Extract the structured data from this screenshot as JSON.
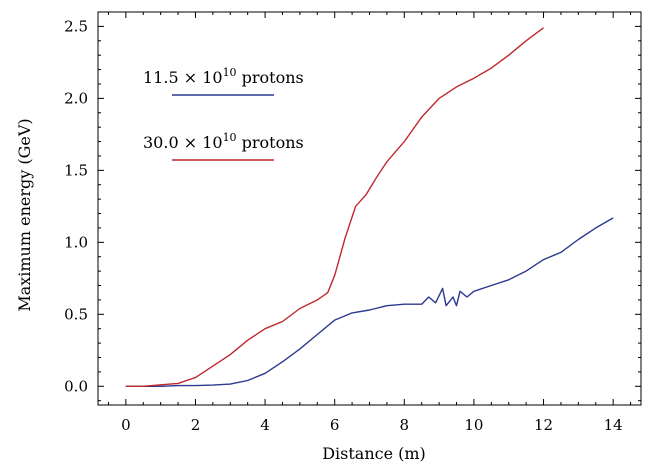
{
  "chart_data": {
    "type": "line",
    "xlabel": "Distance (m)",
    "ylabel": "Maximum energy (GeV)",
    "xlim": [
      -0.8,
      14.8
    ],
    "ylim": [
      -0.13,
      2.6
    ],
    "x_ticks": [
      0,
      2,
      4,
      6,
      8,
      10,
      12,
      14
    ],
    "y_ticks": [
      0.0,
      0.5,
      1.0,
      1.5,
      2.0,
      2.5
    ],
    "x_tick_labels": [
      "0",
      "2",
      "4",
      "6",
      "8",
      "10",
      "12",
      "14"
    ],
    "y_tick_labels": [
      "0.0",
      "0.5",
      "1.0",
      "1.5",
      "2.0",
      "2.5"
    ],
    "x_minor_step": 0.5,
    "y_minor_step": 0.1,
    "grid": false,
    "legend_position": "top-left",
    "series": [
      {
        "name": "11.5 × 10¹⁰ protons",
        "color": "#2b3a8f",
        "x": [
          0,
          0.5,
          1.0,
          1.5,
          2.0,
          2.5,
          3.0,
          3.5,
          4.0,
          4.5,
          5.0,
          5.5,
          6.0,
          6.5,
          7.0,
          7.5,
          8.0,
          8.5,
          8.7,
          8.9,
          9.1,
          9.2,
          9.4,
          9.5,
          9.6,
          9.8,
          10.0,
          10.5,
          11.0,
          11.5,
          12.0,
          12.5,
          13.0,
          13.5,
          14.0
        ],
        "y": [
          0.0,
          0.0,
          0.0,
          0.005,
          0.005,
          0.008,
          0.015,
          0.04,
          0.09,
          0.17,
          0.26,
          0.36,
          0.46,
          0.51,
          0.53,
          0.56,
          0.57,
          0.57,
          0.62,
          0.58,
          0.68,
          0.56,
          0.62,
          0.56,
          0.66,
          0.62,
          0.66,
          0.7,
          0.74,
          0.8,
          0.88,
          0.93,
          1.02,
          1.1,
          1.17
        ]
      },
      {
        "name": "30.0 × 10¹⁰ protons",
        "color": "#c0282d",
        "x": [
          0,
          0.5,
          1.0,
          1.5,
          2.0,
          2.5,
          3.0,
          3.5,
          4.0,
          4.5,
          5.0,
          5.5,
          5.8,
          6.0,
          6.3,
          6.6,
          6.9,
          7.2,
          7.5,
          8.0,
          8.5,
          9.0,
          9.5,
          10.0,
          10.5,
          11.0,
          11.5,
          12.0
        ],
        "y": [
          0.0,
          0.0,
          0.01,
          0.02,
          0.06,
          0.14,
          0.22,
          0.32,
          0.4,
          0.45,
          0.54,
          0.6,
          0.65,
          0.77,
          1.03,
          1.25,
          1.33,
          1.45,
          1.56,
          1.7,
          1.87,
          2.0,
          2.08,
          2.14,
          2.21,
          2.3,
          2.4,
          2.49
        ]
      }
    ],
    "legend": {
      "entries": [
        {
          "prefix": "11.5 ×",
          "base": "10",
          "exp": "10",
          "suffix": " protons",
          "color": "#2b3a8f"
        },
        {
          "prefix": "30.0 ×",
          "base": "10",
          "exp": "10",
          "suffix": " protons",
          "color": "#c0282d"
        }
      ]
    }
  }
}
